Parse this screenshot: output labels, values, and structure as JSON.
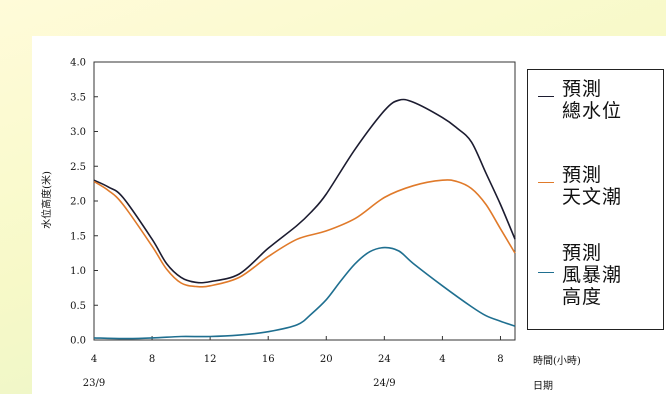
{
  "chart_data": {
    "type": "line",
    "title": "",
    "ylabel": "水位高度(米)",
    "xlabel": "時間(小時)",
    "date_label": "日期",
    "ylim": [
      0,
      4.0
    ],
    "y_ticks": [
      "0.0",
      "0.5",
      "1.0",
      "1.5",
      "2.0",
      "2.5",
      "3.0",
      "3.5",
      "4.0"
    ],
    "x_ticks": [
      "4",
      "8",
      "12",
      "16",
      "20",
      "24",
      "4",
      "8"
    ],
    "x_tick_hours": [
      4,
      8,
      12,
      16,
      20,
      24,
      28,
      32
    ],
    "xlim": [
      4,
      33
    ],
    "dates": [
      {
        "label": "23/9",
        "hour": 4
      },
      {
        "label": "24/9",
        "hour": 24
      }
    ],
    "grid": false,
    "legend_position": "right",
    "series": [
      {
        "name": "預測\n總水位",
        "color": "#1c1c30",
        "x": [
          4,
          5,
          6,
          8,
          9,
          10,
          11,
          12,
          14,
          16,
          18,
          19,
          20,
          22,
          24,
          25,
          26,
          28,
          29,
          30,
          31,
          32,
          33
        ],
        "values": [
          2.3,
          2.2,
          2.05,
          1.45,
          1.1,
          0.9,
          0.83,
          0.84,
          0.95,
          1.32,
          1.65,
          1.85,
          2.1,
          2.75,
          3.3,
          3.45,
          3.42,
          3.2,
          3.05,
          2.85,
          2.4,
          1.95,
          1.45
        ]
      },
      {
        "name": "預測\n天文潮",
        "color": "#e07a2a",
        "x": [
          4,
          5,
          6,
          8,
          9,
          10,
          11,
          12,
          14,
          16,
          18,
          20,
          22,
          24,
          26,
          28,
          29,
          30,
          31,
          32,
          33
        ],
        "values": [
          2.28,
          2.15,
          1.95,
          1.35,
          1.02,
          0.82,
          0.77,
          0.78,
          0.9,
          1.2,
          1.45,
          1.57,
          1.75,
          2.05,
          2.22,
          2.3,
          2.28,
          2.18,
          1.95,
          1.6,
          1.25
        ]
      },
      {
        "name": "預測\n風暴潮\n高度",
        "color": "#1f6f90",
        "x": [
          4,
          6,
          8,
          10,
          12,
          14,
          16,
          18,
          19,
          20,
          21,
          22,
          23,
          24,
          25,
          26,
          28,
          30,
          31,
          32,
          33
        ],
        "values": [
          0.03,
          0.02,
          0.03,
          0.05,
          0.05,
          0.07,
          0.12,
          0.22,
          0.38,
          0.58,
          0.85,
          1.1,
          1.27,
          1.33,
          1.28,
          1.1,
          0.78,
          0.48,
          0.35,
          0.27,
          0.2
        ]
      }
    ]
  }
}
